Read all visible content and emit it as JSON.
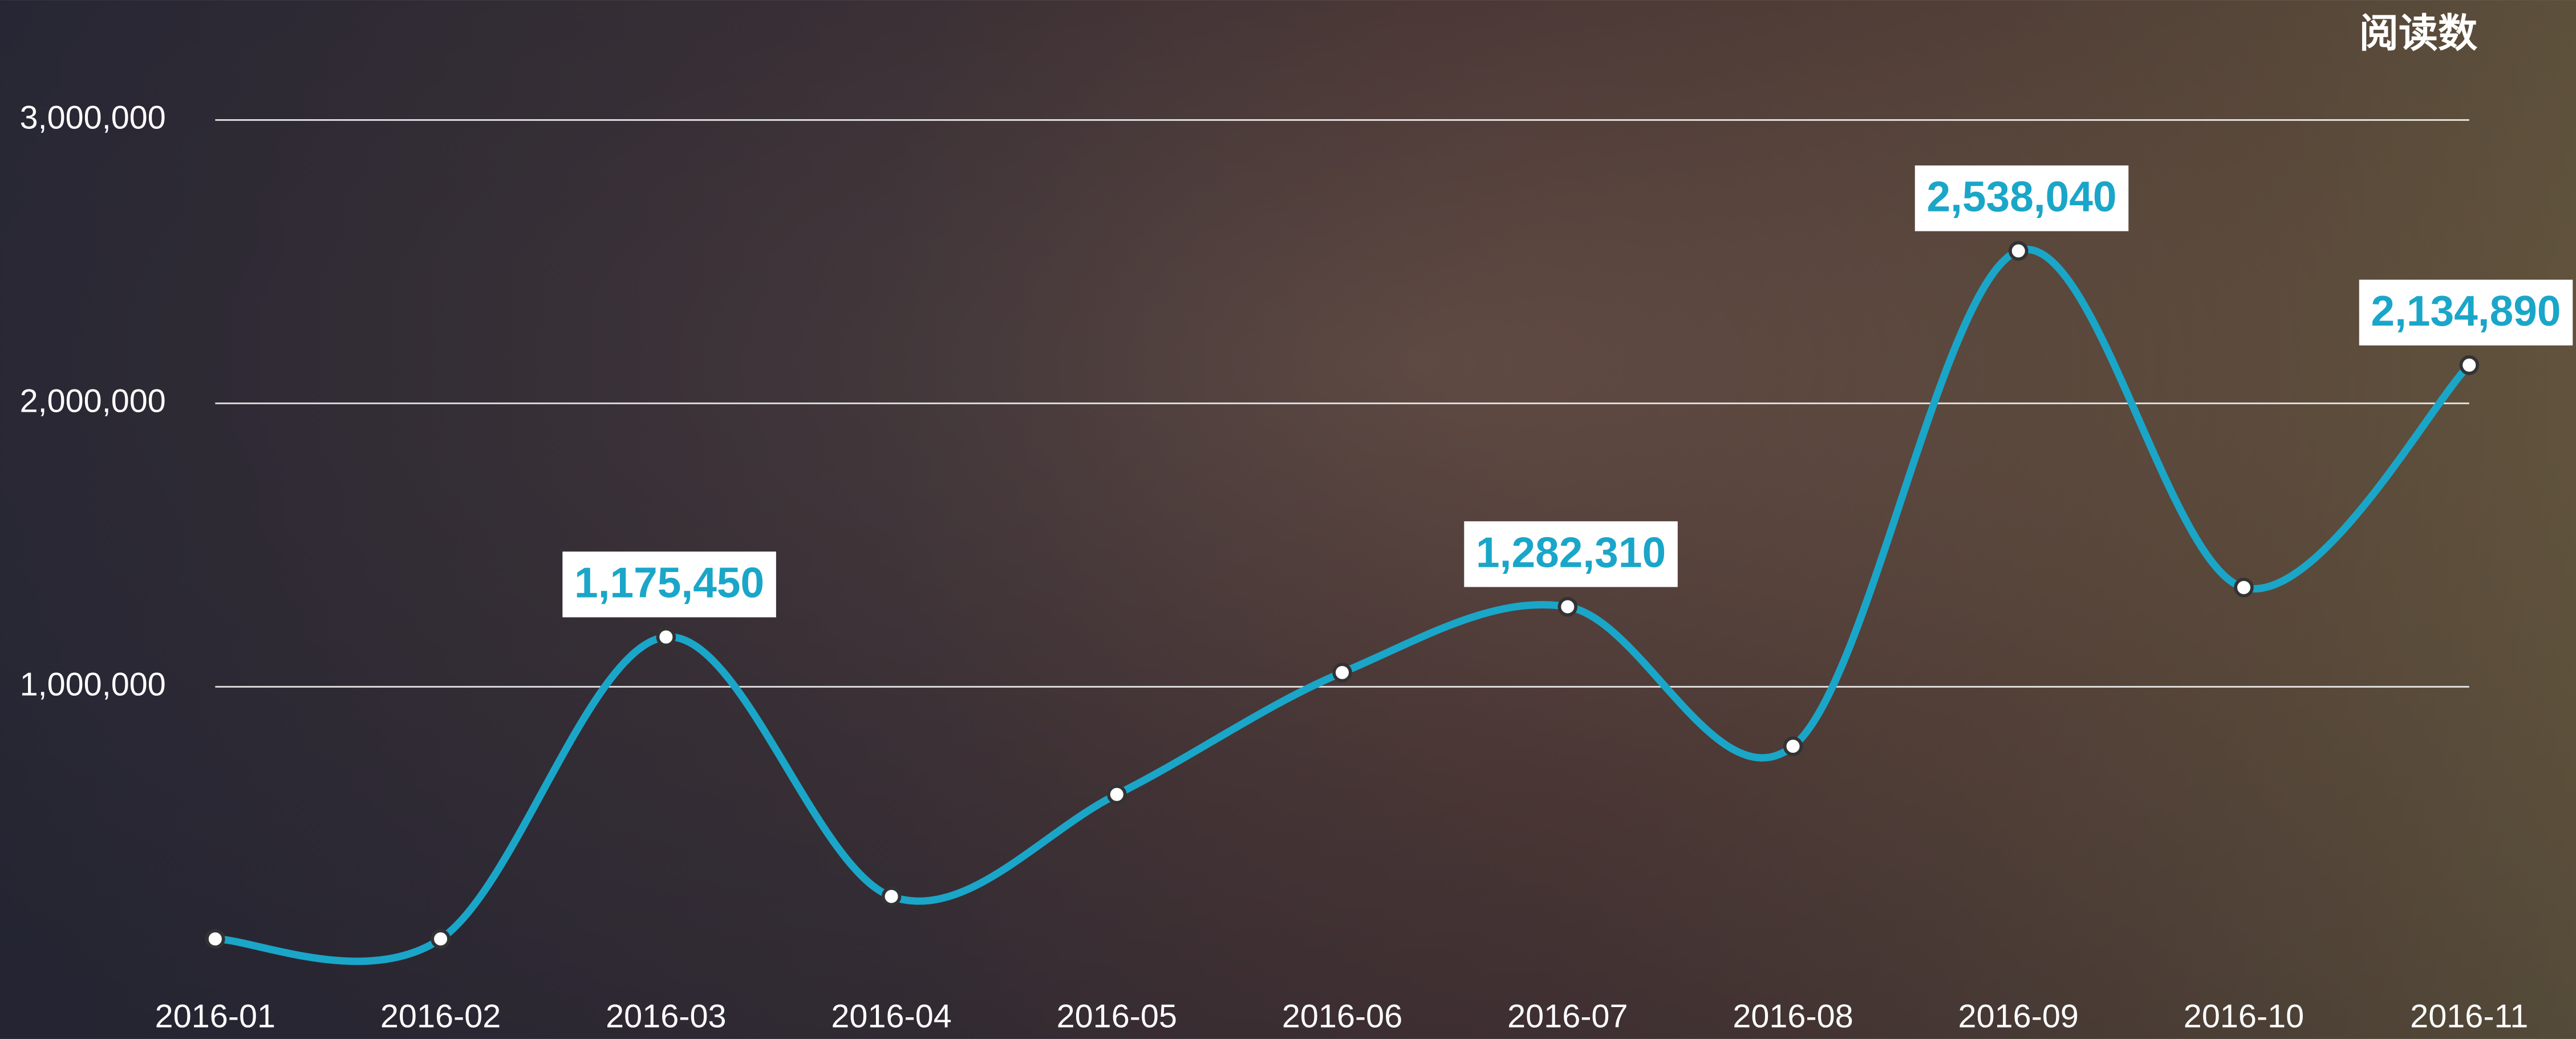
{
  "chart_data": {
    "type": "line",
    "y_axis_title": "阅读数",
    "categories": [
      "2016-01",
      "2016-02",
      "2016-03",
      "2016-04",
      "2016-05",
      "2016-06",
      "2016-07",
      "2016-08",
      "2016-09",
      "2016-10",
      "2016-11"
    ],
    "series": [
      {
        "name": "阅读数",
        "color": "#1aa6c8",
        "values": [
          110000,
          110000,
          1175450,
          260000,
          620000,
          1050000,
          1282310,
          790000,
          2538040,
          1350000,
          2134890
        ],
        "value_labels": [
          null,
          null,
          "1,175,450",
          null,
          null,
          null,
          "1,282,310",
          null,
          "2,538,040",
          null,
          "2,134,890"
        ]
      }
    ],
    "ylim": [
      0,
      3000000
    ],
    "yticks": [
      {
        "value": 1000000,
        "label": "1,000,000"
      },
      {
        "value": 2000000,
        "label": "2,000,000"
      },
      {
        "value": 3000000,
        "label": "3,000,000"
      }
    ],
    "grid": true
  }
}
